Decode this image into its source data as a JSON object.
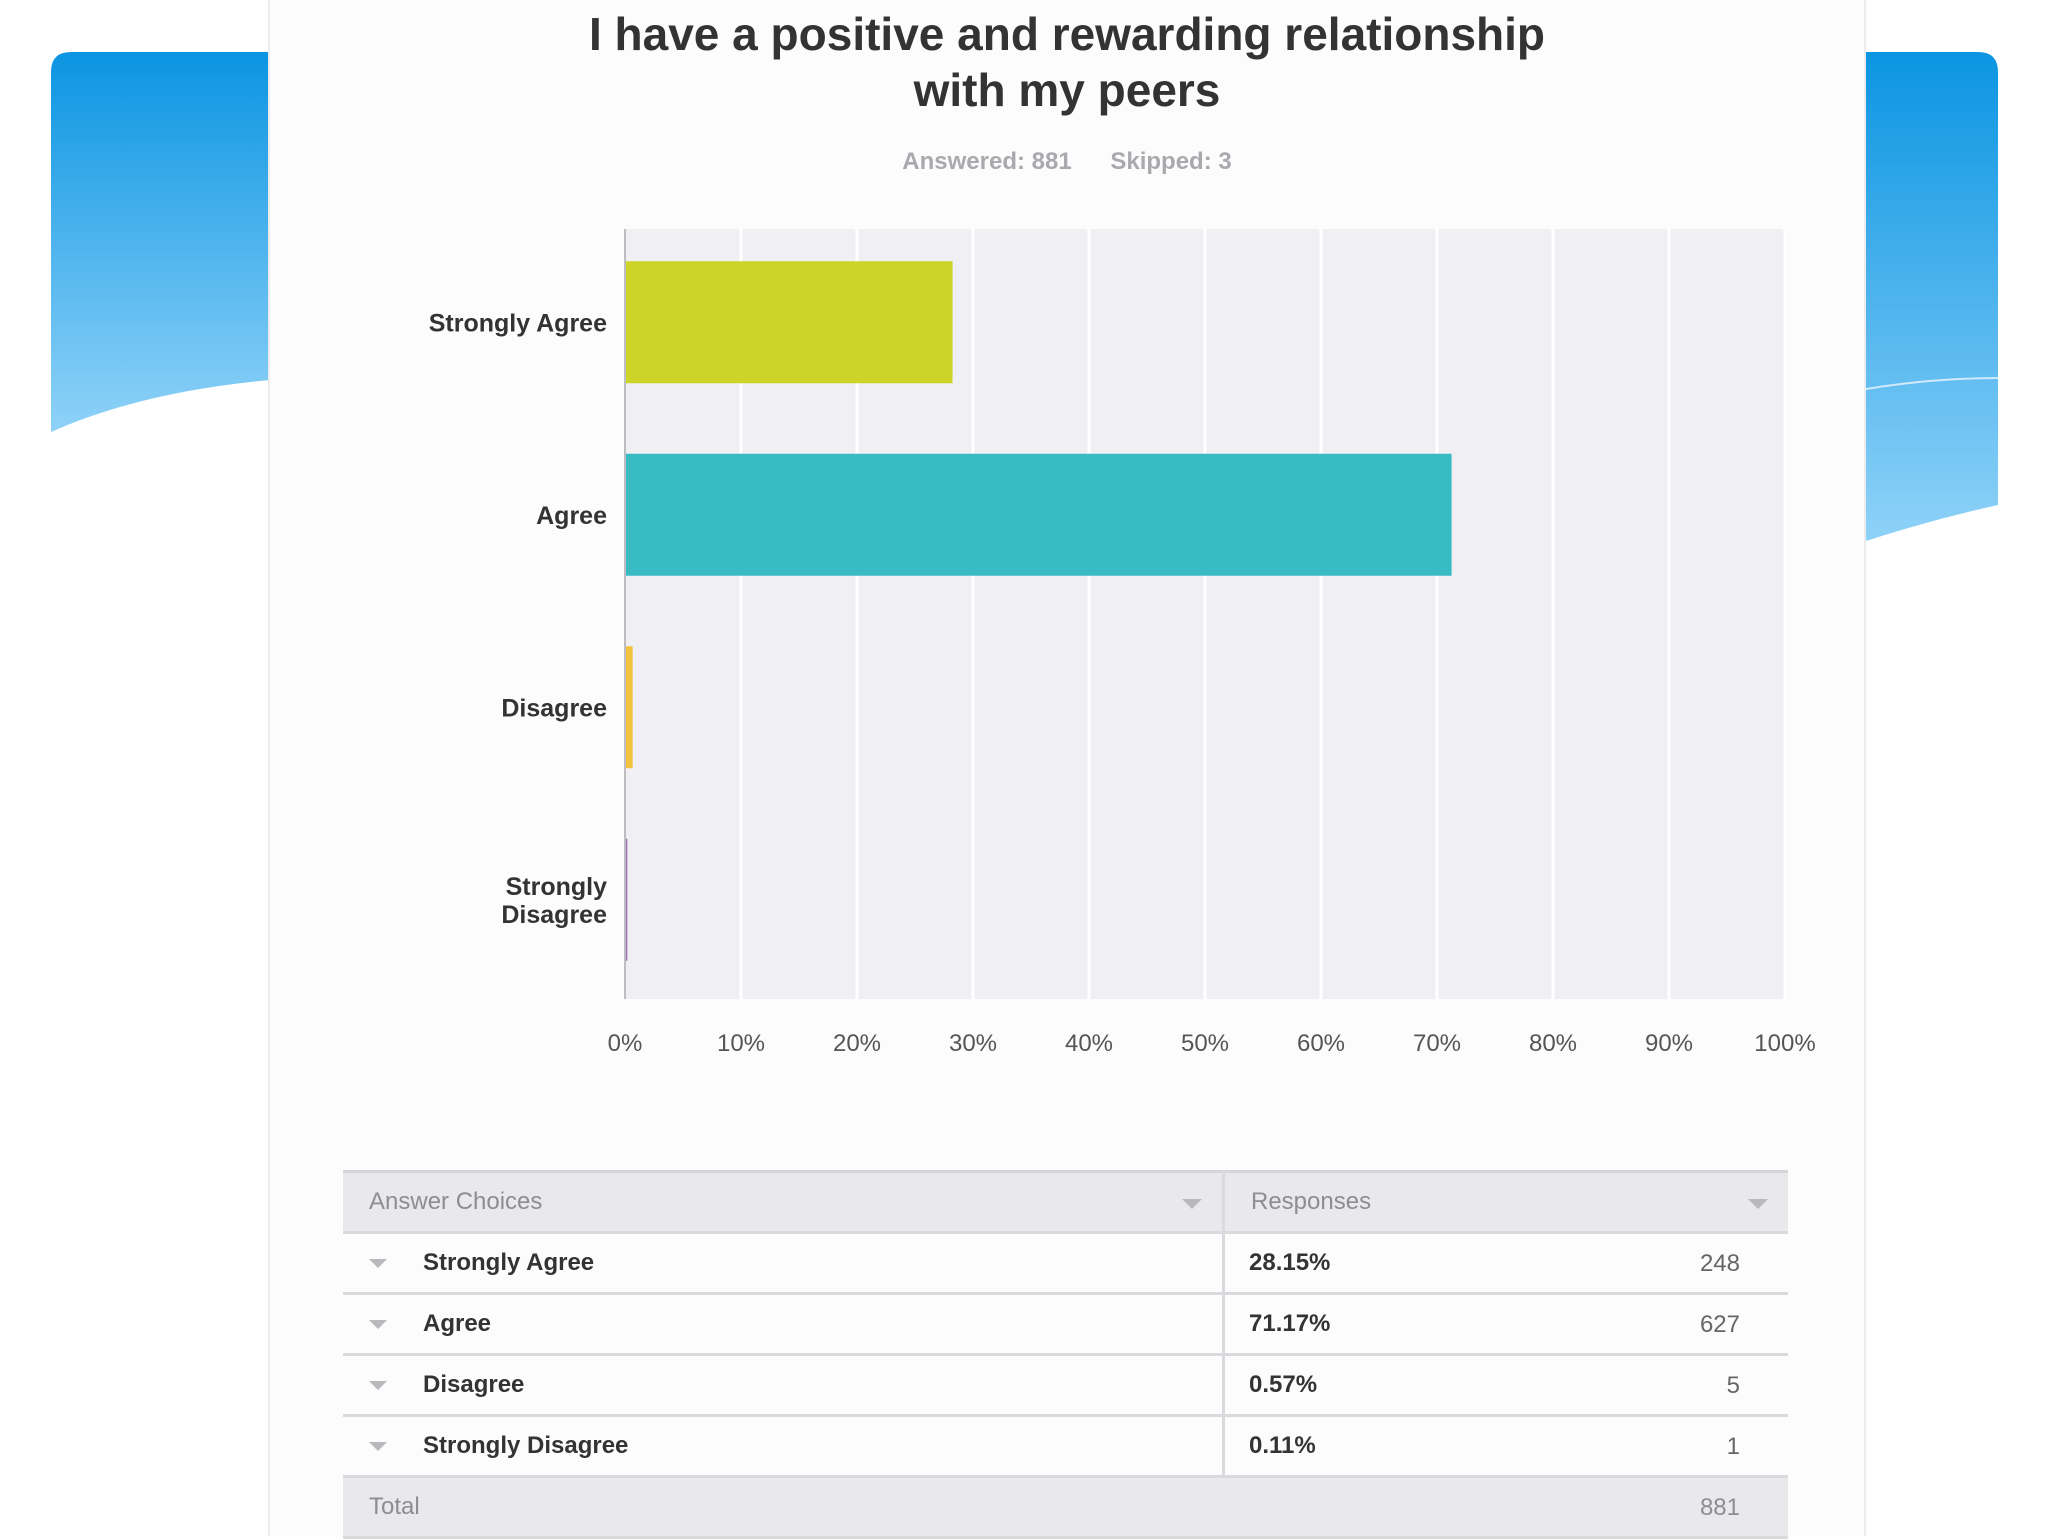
{
  "colors": {
    "background": "#ffffff",
    "panel": "#fcfcfd",
    "plot_bg": "#f0eff3",
    "gridline": "#ffffff",
    "deco_blue_dark": "#0b95e2",
    "deco_blue_light": "#8fd2f8",
    "text": "#333333",
    "muted": "#a9a9ae"
  },
  "header": {
    "title_line1": "I have a positive and rewarding relationship",
    "title_line2": "with my peers",
    "answered": "Answered: 881",
    "skipped": "Skipped: 3"
  },
  "chart_data": {
    "type": "bar",
    "orientation": "horizontal",
    "categories": [
      "Strongly Agree",
      "Agree",
      "Disagree",
      "Strongly Disagree"
    ],
    "category_label_lines": [
      [
        "Strongly Agree"
      ],
      [
        "Agree"
      ],
      [
        "Disagree"
      ],
      [
        "Strongly",
        "Disagree"
      ]
    ],
    "values": [
      28.15,
      71.17,
      0.57,
      0.11
    ],
    "colors": [
      "#cdd428",
      "#38bbc2",
      "#f3c23d",
      "#9a6bb0"
    ],
    "xlim": [
      0,
      100
    ],
    "xticks": [
      "0%",
      "10%",
      "20%",
      "30%",
      "40%",
      "50%",
      "60%",
      "70%",
      "80%",
      "90%",
      "100%"
    ],
    "grid": true,
    "legend": "none",
    "title": "I have a positive and rewarding relationship with my peers",
    "xlabel": "",
    "ylabel": ""
  },
  "table": {
    "headers": [
      "Answer Choices",
      "Responses"
    ],
    "rows": [
      {
        "choice": "Strongly Agree",
        "percent": "28.15%",
        "count": "248"
      },
      {
        "choice": "Agree",
        "percent": "71.17%",
        "count": "627"
      },
      {
        "choice": "Disagree",
        "percent": "0.57%",
        "count": "5"
      },
      {
        "choice": "Strongly Disagree",
        "percent": "0.11%",
        "count": "1"
      }
    ],
    "total_label": "Total",
    "total_count": "881"
  }
}
